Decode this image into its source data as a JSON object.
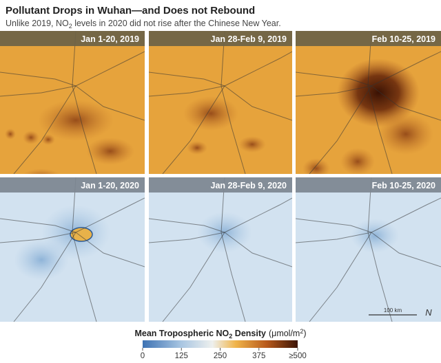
{
  "header": {
    "title": "Pollutant Drops in Wuhan—and Does not Rebound",
    "subtitle": [
      "Unlike 2019, NO",
      "2",
      " levels in 2020 did not rise after the Chinese New Year."
    ]
  },
  "panels": [
    {
      "label": "Jan 1-20, 2019"
    },
    {
      "label": "Jan 28-Feb 9, 2019"
    },
    {
      "label": "Feb 10-25, 2019"
    },
    {
      "label": "Jan 1-20, 2020"
    },
    {
      "label": "Jan 28-Feb 9, 2020"
    },
    {
      "label": "Feb 10-25, 2020"
    }
  ],
  "scale_bar": "100 km",
  "north": "N",
  "colorbar": {
    "label": [
      "Mean Tropospheric NO",
      "2",
      " Density",
      "(μmol/m",
      "2",
      ")"
    ],
    "range": [
      0,
      500
    ],
    "ticks": [
      0,
      125,
      250,
      375,
      {
        "value": 500,
        "label": "≥500"
      }
    ]
  }
}
